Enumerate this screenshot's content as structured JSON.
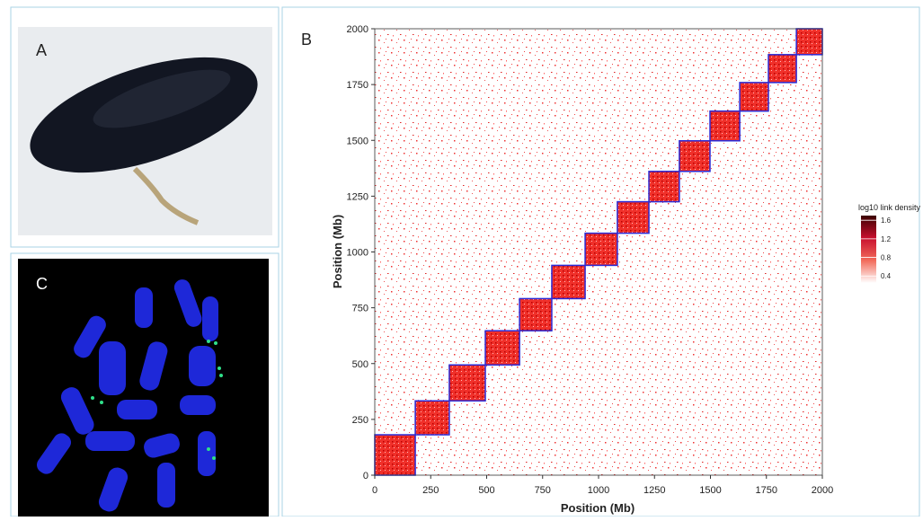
{
  "panels": {
    "a": "A",
    "b": "B",
    "c": "C"
  },
  "chart_data": {
    "type": "heatmap",
    "xlabel": "Position (Mb)",
    "ylabel": "Position (Mb)",
    "xlim": [
      0,
      2000
    ],
    "ylim": [
      0,
      2000
    ],
    "xticks": [
      0,
      250,
      500,
      750,
      1000,
      1250,
      1500,
      1750,
      2000
    ],
    "yticks": [
      0,
      250,
      500,
      750,
      1000,
      1250,
      1500,
      1750,
      2000
    ],
    "chromosome_bounds": [
      0,
      181,
      333,
      494,
      647,
      791,
      940,
      1084,
      1225,
      1361,
      1498,
      1631,
      1759,
      1884,
      2000
    ],
    "block_color": "#e8231f",
    "block_outline": "#2b2bd6",
    "colorbar": {
      "title": "log10 link density",
      "lim": [
        0.25,
        1.7
      ],
      "ticks": [
        0.4,
        0.8,
        1.2,
        1.6
      ],
      "colors": [
        "#ffffff",
        "#f26b5b",
        "#c8102e",
        "#3a0000"
      ]
    }
  }
}
